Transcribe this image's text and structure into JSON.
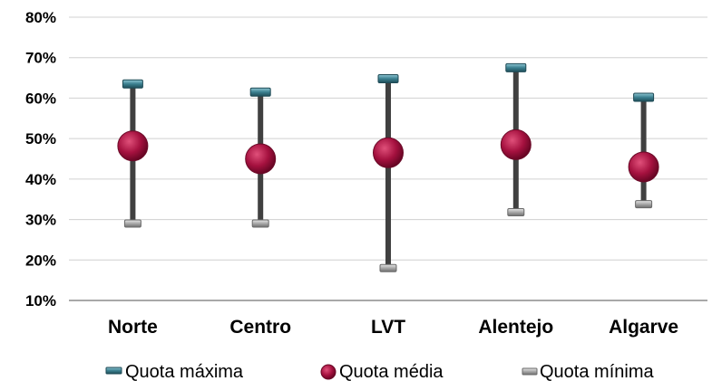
{
  "chart_data": {
    "type": "scatter",
    "subtype": "high-low-mean",
    "categories": [
      "Norte",
      "Centro",
      "LVT",
      "Alentejo",
      "Algarve"
    ],
    "series": [
      {
        "name": "Quota máxima",
        "values": [
          63.5,
          61.5,
          64.8,
          67.5,
          60.2
        ],
        "color": "#2f6f7f",
        "marker": "dash"
      },
      {
        "name": "Quota média",
        "values": [
          48.2,
          45.0,
          46.5,
          48.5,
          43.0
        ],
        "color": "#9b0f3f",
        "marker": "circle"
      },
      {
        "name": "Quota mínima",
        "values": [
          29.0,
          29.0,
          18.0,
          31.8,
          33.8
        ],
        "color": "#9a9a9a",
        "marker": "dash"
      }
    ],
    "yticks": [
      "10%",
      "20%",
      "30%",
      "40%",
      "50%",
      "60%",
      "70%",
      "80%"
    ],
    "ylim": [
      10,
      80
    ],
    "grid": true,
    "legend_position": "bottom",
    "title": "",
    "xlabel": "",
    "ylabel": ""
  }
}
